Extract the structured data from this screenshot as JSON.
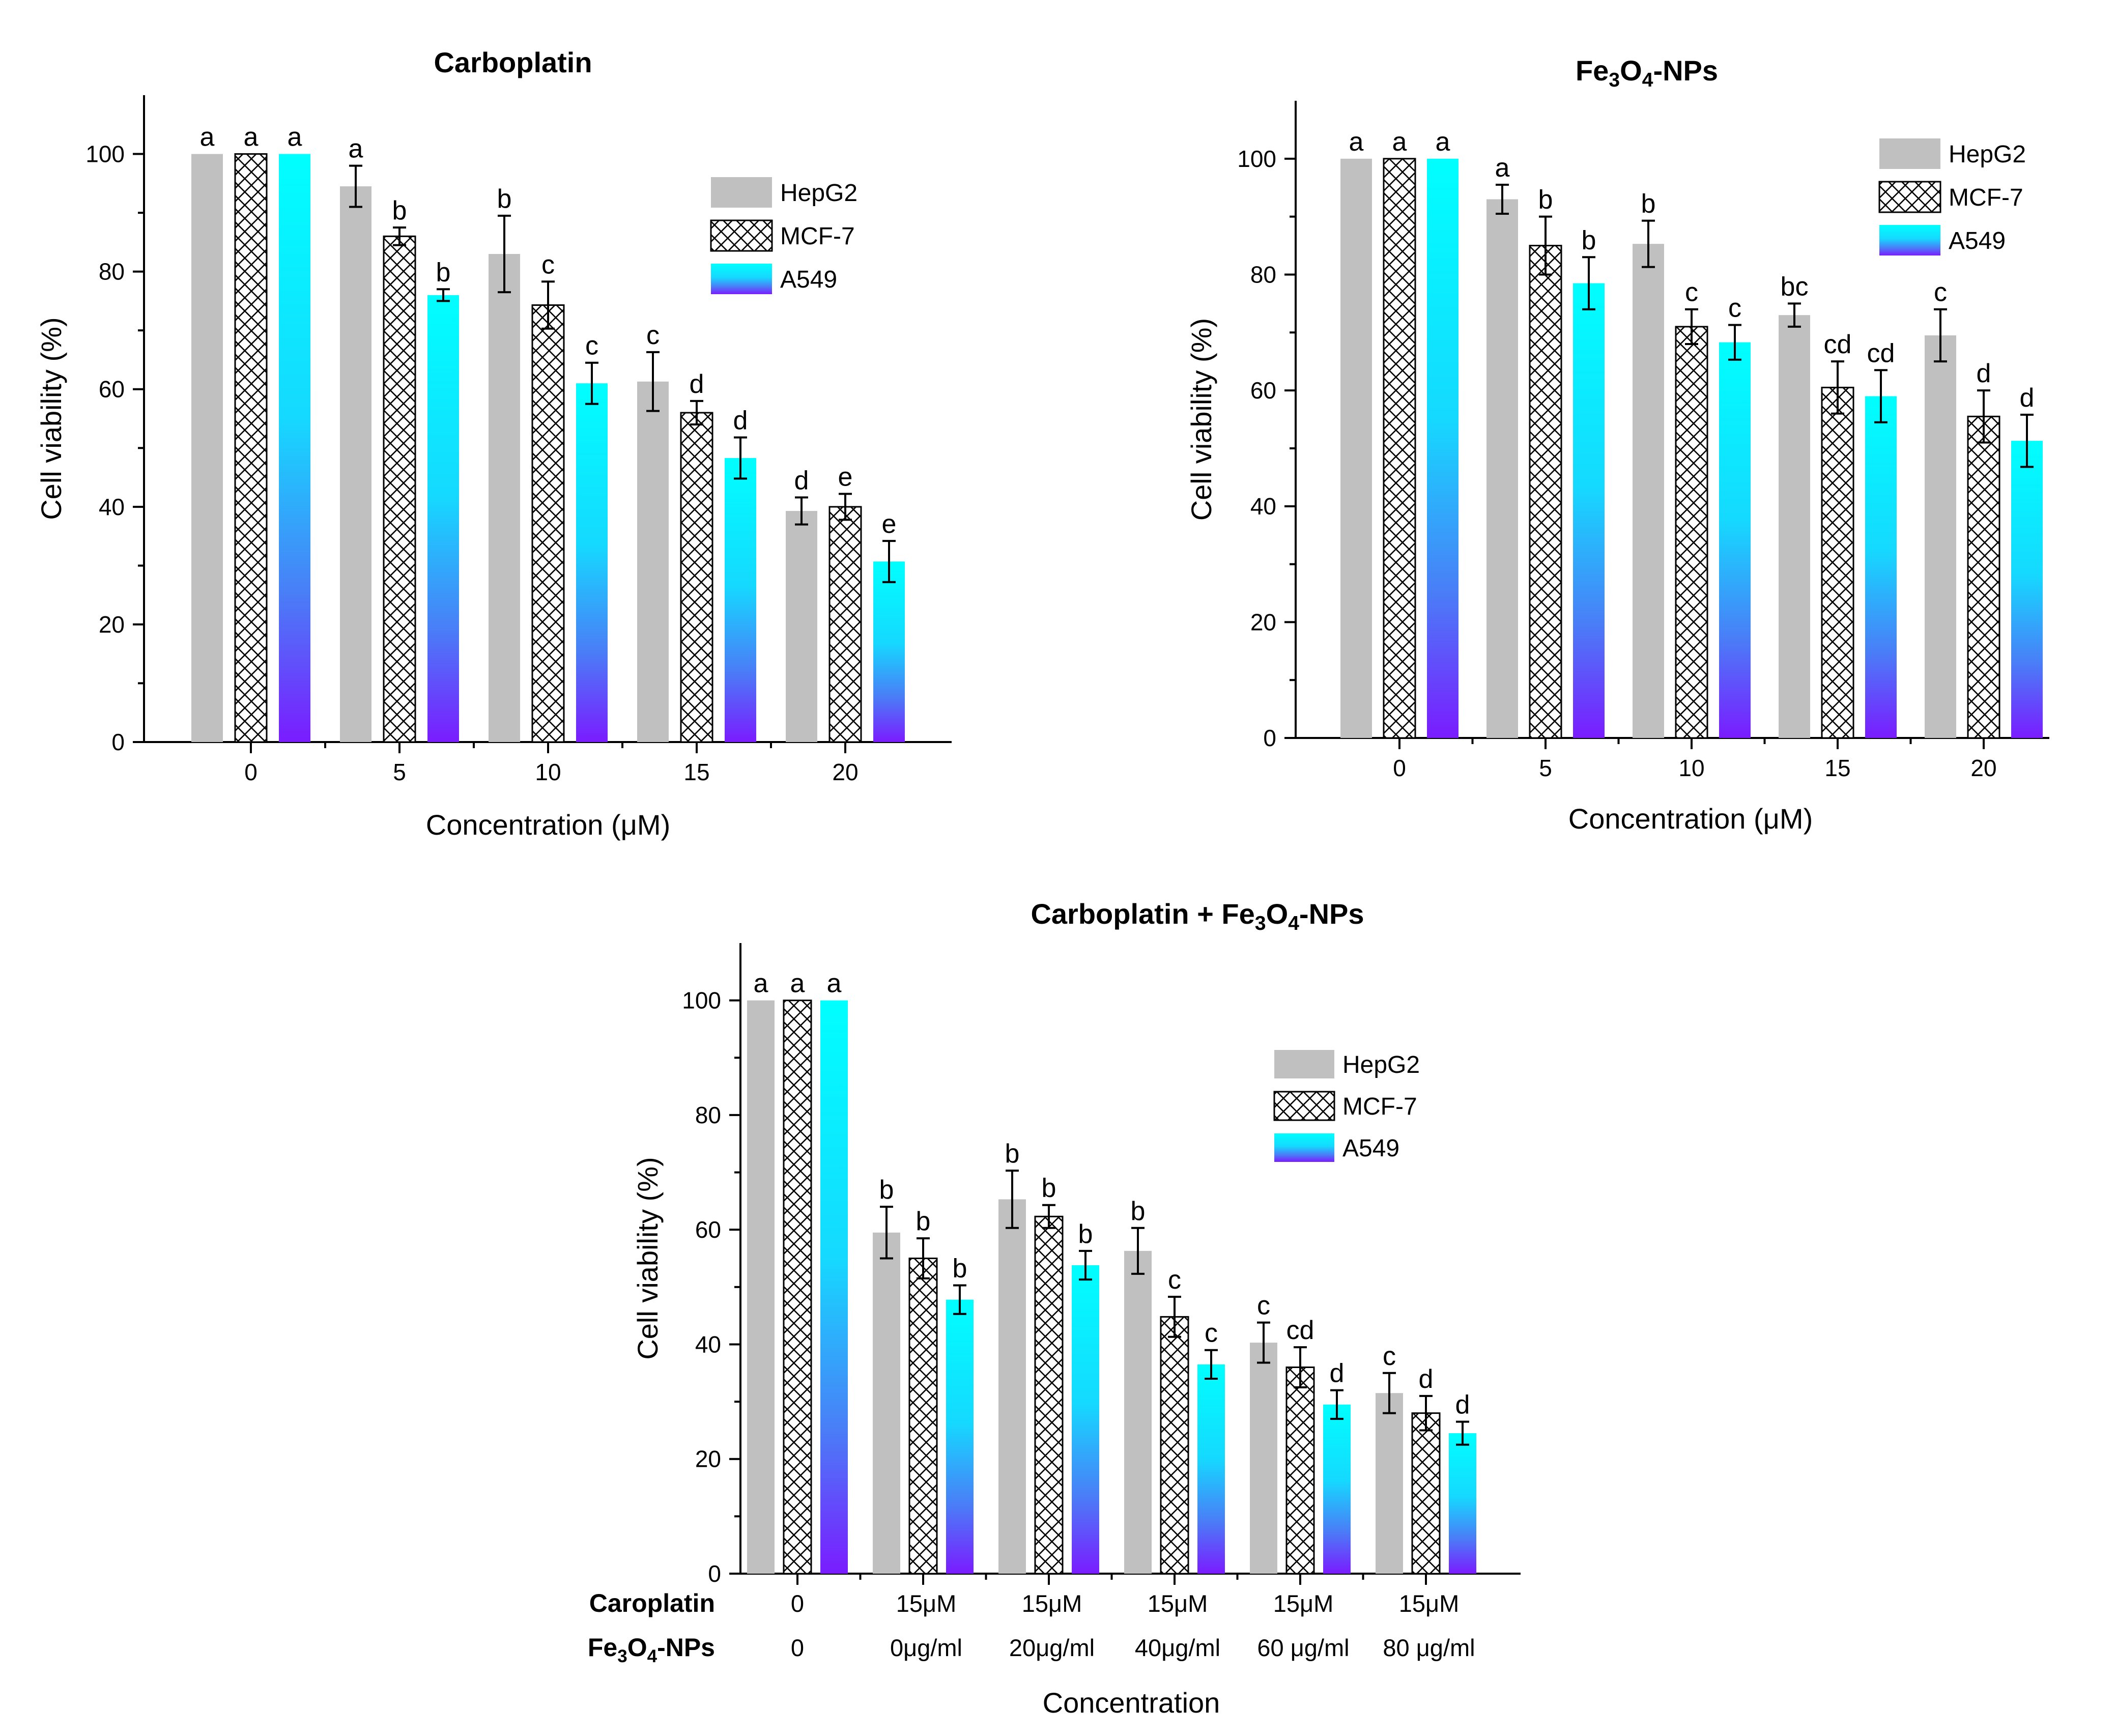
{
  "colors": {
    "hepg2": "#c0c0c0",
    "a549_top": "#00ffff",
    "a549_bottom": "#7a1cff",
    "axis": "#000000"
  },
  "chart_data": [
    {
      "type": "bar",
      "title": "Carboplatin",
      "xlabel": "Concentration (μM)",
      "ylabel": "Cell viability (%)",
      "ylim": [
        0,
        110
      ],
      "yticks": [
        "0",
        "20",
        "40",
        "60",
        "80",
        "100"
      ],
      "categories": [
        "0",
        "5",
        "10",
        "15",
        "20"
      ],
      "series": [
        {
          "name": "HepG2",
          "values": [
            100,
            94.5,
            83,
            61.3,
            39.3
          ],
          "errors": [
            0,
            3.5,
            6.5,
            5,
            2.3
          ],
          "labels": [
            "a",
            "a",
            "b",
            "c",
            "d"
          ]
        },
        {
          "name": "MCF-7",
          "values": [
            100,
            86,
            74.3,
            56,
            40
          ],
          "errors": [
            0,
            1.5,
            4,
            2,
            2.2
          ],
          "labels": [
            "a",
            "b",
            "c",
            "d",
            "e"
          ]
        },
        {
          "name": "A549",
          "values": [
            100,
            76,
            61,
            48.3,
            30.7
          ],
          "errors": [
            0,
            1,
            3.5,
            3.5,
            3.5
          ],
          "labels": [
            "a",
            "b",
            "c",
            "d",
            "e"
          ]
        }
      ],
      "legend": [
        "HepG2",
        "MCF-7",
        "A549"
      ],
      "legend_position": "top-right"
    },
    {
      "type": "bar",
      "title": "Fe3O4-NPs",
      "title_parts": [
        "Fe",
        "3",
        "O",
        "4",
        "-NPs"
      ],
      "xlabel": "Concentration (μM)",
      "ylabel": "Cell viability (%)",
      "ylim": [
        0,
        110
      ],
      "yticks": [
        "0",
        "20",
        "40",
        "60",
        "80",
        "100"
      ],
      "categories": [
        "0",
        "5",
        "10",
        "15",
        "20"
      ],
      "series": [
        {
          "name": "HepG2",
          "values": [
            100,
            93,
            85.3,
            73,
            69.5
          ],
          "errors": [
            0,
            2.5,
            4,
            2,
            4.5
          ],
          "labels": [
            "a",
            "a",
            "b",
            "bc",
            "c"
          ]
        },
        {
          "name": "MCF-7",
          "values": [
            100,
            85,
            71,
            60.5,
            55.5
          ],
          "errors": [
            0,
            5,
            3,
            4.5,
            4.5
          ],
          "labels": [
            "a",
            "b",
            "c",
            "cd",
            "d"
          ]
        },
        {
          "name": "A549",
          "values": [
            100,
            78.5,
            68.3,
            59,
            51.3
          ],
          "errors": [
            0,
            4.5,
            3,
            4.5,
            4.5
          ],
          "labels": [
            "a",
            "b",
            "c",
            "cd",
            "d"
          ]
        }
      ],
      "legend": [
        "HepG2",
        "MCF-7",
        "A549"
      ],
      "legend_position": "top-right"
    },
    {
      "type": "bar",
      "title": "Carboplatin + Fe3O4-NPs",
      "title_parts": [
        "Carboplatin + Fe",
        "3",
        "O",
        "4",
        "-NPs"
      ],
      "xlabel": "Concentration",
      "ylabel": "Cell viability (%)",
      "ylim": [
        0,
        110
      ],
      "yticks": [
        "0",
        "20",
        "40",
        "60",
        "80",
        "100"
      ],
      "row_labels": [
        {
          "parts": [
            "Caroplatin"
          ]
        },
        {
          "parts": [
            "Fe",
            "3",
            "O",
            "4",
            "-NPs"
          ]
        }
      ],
      "categories": [
        [
          "0",
          "0"
        ],
        [
          "15μM",
          "0μg/ml"
        ],
        [
          "15μM",
          "20μg/ml"
        ],
        [
          "15μM",
          "40μg/ml"
        ],
        [
          "15μM",
          "60 μg/ml"
        ],
        [
          "15μM",
          "80 μg/ml"
        ]
      ],
      "series": [
        {
          "name": "HepG2",
          "values": [
            100,
            59.5,
            65.3,
            56.3,
            40.3,
            31.5
          ],
          "errors": [
            0,
            4.5,
            5,
            4,
            3.5,
            3.5
          ],
          "labels": [
            "a",
            "b",
            "b",
            "b",
            "c",
            "c"
          ]
        },
        {
          "name": "MCF-7",
          "values": [
            100,
            55,
            62.3,
            44.8,
            36,
            28
          ],
          "errors": [
            0,
            3.5,
            2,
            3.5,
            3.5,
            3
          ],
          "labels": [
            "a",
            "b",
            "b",
            "c",
            "cd",
            "d"
          ]
        },
        {
          "name": "A549",
          "values": [
            100,
            47.8,
            53.8,
            36.5,
            29.5,
            24.5
          ],
          "errors": [
            0,
            2.5,
            2.5,
            2.5,
            2.5,
            2
          ],
          "labels": [
            "a",
            "b",
            "b",
            "c",
            "d",
            "d"
          ]
        }
      ],
      "legend": [
        "HepG2",
        "MCF-7",
        "A549"
      ],
      "legend_position": "top-right"
    }
  ]
}
